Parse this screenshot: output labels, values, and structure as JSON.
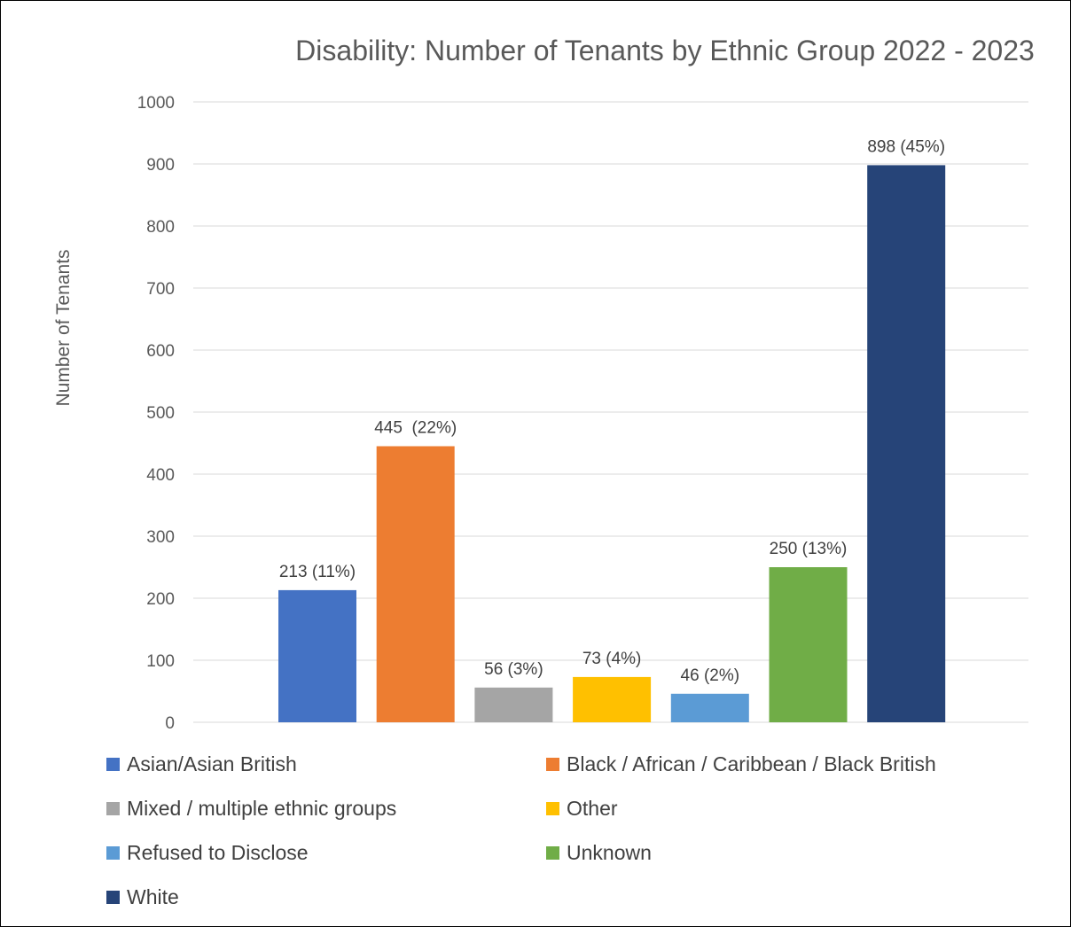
{
  "chart_data": {
    "type": "bar",
    "title": "Disability: Number of Tenants by Ethnic Group 2022 - 2023",
    "xlabel": "",
    "ylabel": "Number of Tenants",
    "ylim": [
      0,
      1000
    ],
    "yticks": [
      0,
      100,
      200,
      300,
      400,
      500,
      600,
      700,
      800,
      900,
      1000
    ],
    "grid": true,
    "legend_position": "bottom",
    "categories": [
      "Asian/Asian British",
      "Black / African / Caribbean / Black British",
      "Mixed / multiple ethnic groups",
      "Other",
      "Refused to Disclose",
      "Unknown",
      "White"
    ],
    "series": [
      {
        "name": "Asian/Asian British",
        "value": 213,
        "label": "213 (11%)",
        "color": "#4472C4"
      },
      {
        "name": "Black / African / Caribbean / Black British",
        "value": 445,
        "label": "445  (22%)",
        "color": "#ED7D31"
      },
      {
        "name": "Mixed / multiple ethnic groups",
        "value": 56,
        "label": "56 (3%)",
        "color": "#A5A5A5"
      },
      {
        "name": "Other",
        "value": 73,
        "label": "73 (4%)",
        "color": "#FFC000"
      },
      {
        "name": "Refused to Disclose",
        "value": 46,
        "label": "46 (2%)",
        "color": "#5B9BD5"
      },
      {
        "name": "Unknown",
        "value": 250,
        "label": "250 (13%)",
        "color": "#70AD47"
      },
      {
        "name": "White",
        "value": 898,
        "label": "898 (45%)",
        "color": "#264478"
      }
    ]
  }
}
